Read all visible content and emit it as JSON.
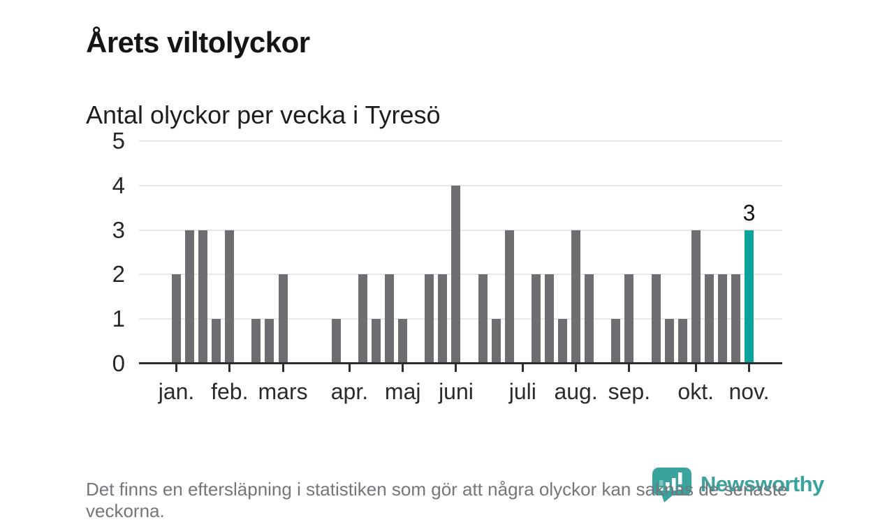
{
  "header": {
    "title": "Årets viltolyckor",
    "subtitle": "Antal olyckor per vecka i Tyresö"
  },
  "chart_data": {
    "type": "bar",
    "title": "Årets viltolyckor",
    "subtitle": "Antal olyckor per vecka i Tyresö",
    "x_unit": "week",
    "values": [
      2,
      3,
      3,
      1,
      3,
      0,
      1,
      1,
      2,
      0,
      0,
      0,
      1,
      0,
      2,
      1,
      2,
      1,
      0,
      2,
      2,
      4,
      0,
      2,
      1,
      3,
      0,
      2,
      2,
      1,
      3,
      2,
      0,
      1,
      2,
      0,
      2,
      1,
      1,
      3,
      2,
      2,
      2,
      3
    ],
    "month_ticks": [
      {
        "index": 0,
        "label": "jan."
      },
      {
        "index": 4,
        "label": "feb."
      },
      {
        "index": 8,
        "label": "mars"
      },
      {
        "index": 13,
        "label": "apr."
      },
      {
        "index": 17,
        "label": "maj"
      },
      {
        "index": 21,
        "label": "juni"
      },
      {
        "index": 26,
        "label": "juli"
      },
      {
        "index": 30,
        "label": "aug."
      },
      {
        "index": 34,
        "label": "sep."
      },
      {
        "index": 39,
        "label": "okt."
      },
      {
        "index": 43,
        "label": "nov."
      }
    ],
    "y_ticks": [
      0,
      1,
      2,
      3,
      4,
      5
    ],
    "ylim": [
      0,
      5
    ],
    "grid": true,
    "legend": false,
    "bar_color": "#6d6d72",
    "highlight_color": "#0aa29a",
    "highlight_index": 43,
    "highlight_label": "3"
  },
  "footer": {
    "note": "Det finns en eftersläpning i statistiken som gör att några olyckor kan saknas de senaste veckorna."
  },
  "branding": {
    "name": "Newsworthy",
    "logo_icon": "bar-chart-speech-bubble-icon",
    "teal": "#3ba39e"
  }
}
